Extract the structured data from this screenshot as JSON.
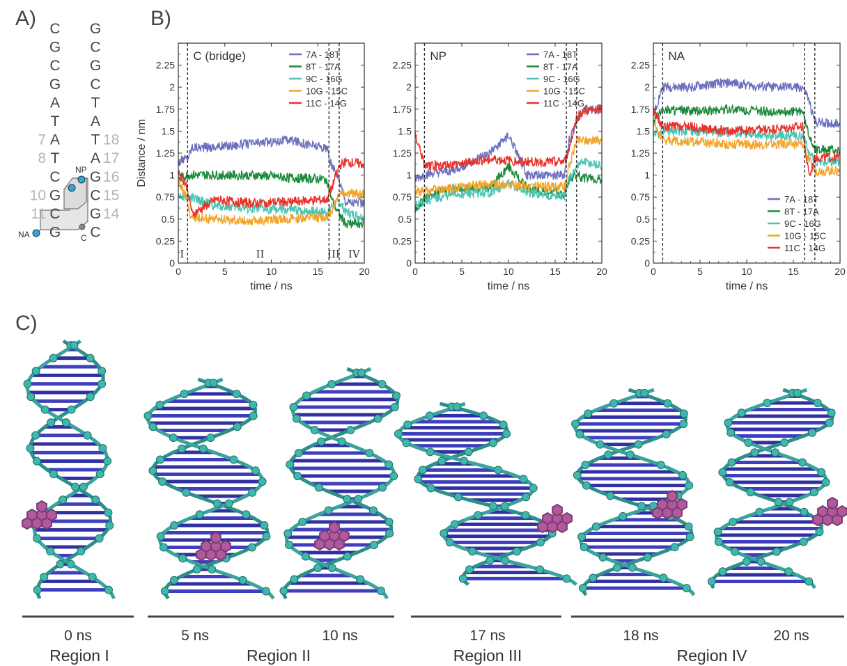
{
  "panel_labels": {
    "a": "A)",
    "b": "B)",
    "c": "C)"
  },
  "sequence": {
    "left": [
      "C",
      "G",
      "C",
      "G",
      "A",
      "T",
      "A",
      "T",
      "C",
      "G",
      "C",
      "G"
    ],
    "right": [
      "G",
      "C",
      "G",
      "C",
      "T",
      "A",
      "T",
      "A",
      "G",
      "C",
      "G",
      "C"
    ],
    "left_numbers": [
      "",
      "",
      "",
      "",
      "",
      "",
      "7",
      "8",
      "",
      "10",
      "11",
      ""
    ],
    "right_numbers": [
      "",
      "",
      "",
      "",
      "",
      "",
      "18",
      "17",
      "16",
      "15",
      "14",
      ""
    ],
    "markers": {
      "np": "NP",
      "na": "NA",
      "c": "C"
    }
  },
  "colors": {
    "7A-18T": "#6b6fbd",
    "8T-17A": "#1c8a3c",
    "9C-16G": "#4cc4b4",
    "10G-15C": "#f4a42a",
    "11C-14G": "#e8332b",
    "marker_dot": "#2aa8e0"
  },
  "chart_data": [
    {
      "type": "line",
      "title": "C (bridge)",
      "xlabel": "time / ns",
      "ylabel": "Distance / nm",
      "xlim": [
        0,
        20
      ],
      "ylim": [
        0,
        2.5
      ],
      "xticks": [
        "0",
        "5",
        "10",
        "15",
        "20"
      ],
      "yticks": [
        "0",
        "0.25",
        "0.5",
        "0.75",
        "1",
        "1.25",
        "1.5",
        "1.75",
        "2",
        "2.25"
      ],
      "vlines": [
        1.0,
        16.2,
        17.3
      ],
      "regions": [
        {
          "label": "I",
          "x": 0.4
        },
        {
          "label": "II",
          "x": 8.8
        },
        {
          "label": "III",
          "x": 16.7
        },
        {
          "label": "IV",
          "x": 18.9
        }
      ],
      "legend_position": "top-right",
      "series": [
        {
          "name": "7A  - 18T",
          "key": "7A-18T",
          "points": [
            [
              0,
              1.15
            ],
            [
              1,
              1.2
            ],
            [
              1.5,
              1.32
            ],
            [
              4,
              1.32
            ],
            [
              8,
              1.36
            ],
            [
              12,
              1.4
            ],
            [
              16,
              1.3
            ],
            [
              16.3,
              1.15
            ],
            [
              17.3,
              0.95
            ],
            [
              18,
              0.7
            ],
            [
              20,
              0.68
            ]
          ]
        },
        {
          "name": "8T - 17A",
          "key": "8T-17A",
          "points": [
            [
              0,
              0.95
            ],
            [
              1,
              1.0
            ],
            [
              4,
              1.0
            ],
            [
              8,
              1.0
            ],
            [
              12,
              0.97
            ],
            [
              16,
              0.95
            ],
            [
              16.5,
              0.72
            ],
            [
              17.3,
              0.55
            ],
            [
              18,
              0.45
            ],
            [
              20,
              0.45
            ]
          ]
        },
        {
          "name": "9C - 16G",
          "key": "9C-16G",
          "points": [
            [
              0,
              0.78
            ],
            [
              1,
              0.75
            ],
            [
              4,
              0.65
            ],
            [
              8,
              0.62
            ],
            [
              12,
              0.6
            ],
            [
              16,
              0.58
            ],
            [
              16.5,
              0.65
            ],
            [
              17.3,
              0.7
            ],
            [
              18,
              0.58
            ],
            [
              20,
              0.52
            ]
          ]
        },
        {
          "name": "10G - 15C",
          "key": "10G-15C",
          "points": [
            [
              0,
              0.95
            ],
            [
              1,
              0.7
            ],
            [
              1.3,
              0.52
            ],
            [
              4,
              0.5
            ],
            [
              8,
              0.48
            ],
            [
              12,
              0.5
            ],
            [
              16,
              0.52
            ],
            [
              16.5,
              0.6
            ],
            [
              17.3,
              0.8
            ],
            [
              18,
              0.8
            ],
            [
              20,
              0.78
            ]
          ]
        },
        {
          "name": "11C - 14G",
          "key": "11C-14G",
          "points": [
            [
              0,
              1.05
            ],
            [
              1,
              0.85
            ],
            [
              1.5,
              0.55
            ],
            [
              4,
              0.72
            ],
            [
              8,
              0.68
            ],
            [
              12,
              0.7
            ],
            [
              16,
              0.72
            ],
            [
              16.5,
              0.85
            ],
            [
              17.3,
              1.1
            ],
            [
              18,
              1.15
            ],
            [
              20,
              1.12
            ]
          ]
        }
      ]
    },
    {
      "type": "line",
      "title": "NP",
      "xlabel": "time / ns",
      "ylabel": "",
      "xlim": [
        0,
        20
      ],
      "ylim": [
        0,
        2.5
      ],
      "xticks": [
        "0",
        "5",
        "10",
        "15",
        "20"
      ],
      "yticks": [
        "0",
        "0.25",
        "0.5",
        "0.75",
        "1",
        "1.25",
        "1.5",
        "1.75",
        "2",
        "2.25"
      ],
      "vlines": [
        1.0,
        16.2,
        17.3
      ],
      "regions": [],
      "legend_position": "top-right",
      "series": [
        {
          "name": "7A  - 18T",
          "key": "7A-18T",
          "points": [
            [
              0,
              0.95
            ],
            [
              1,
              1.0
            ],
            [
              4,
              1.05
            ],
            [
              8,
              1.25
            ],
            [
              10,
              1.45
            ],
            [
              12,
              1.0
            ],
            [
              16,
              1.0
            ],
            [
              16.5,
              1.4
            ],
            [
              17.3,
              1.6
            ],
            [
              18,
              1.75
            ],
            [
              20,
              1.75
            ]
          ]
        },
        {
          "name": "8T - 17A",
          "key": "8T-17A",
          "points": [
            [
              0,
              0.6
            ],
            [
              1,
              0.75
            ],
            [
              4,
              0.85
            ],
            [
              8,
              0.85
            ],
            [
              10,
              1.1
            ],
            [
              12,
              0.85
            ],
            [
              16,
              0.78
            ],
            [
              16.5,
              0.95
            ],
            [
              17.3,
              1.0
            ],
            [
              18,
              0.97
            ],
            [
              20,
              0.95
            ]
          ]
        },
        {
          "name": "9C - 16G",
          "key": "9C-16G",
          "points": [
            [
              0,
              0.65
            ],
            [
              1,
              0.7
            ],
            [
              4,
              0.78
            ],
            [
              8,
              0.8
            ],
            [
              10,
              0.9
            ],
            [
              12,
              0.8
            ],
            [
              16,
              0.75
            ],
            [
              16.5,
              0.95
            ],
            [
              17.3,
              1.1
            ],
            [
              18,
              1.15
            ],
            [
              20,
              1.1
            ]
          ]
        },
        {
          "name": "10G - 15C",
          "key": "10G-15C",
          "points": [
            [
              0,
              0.8
            ],
            [
              1,
              0.82
            ],
            [
              4,
              0.85
            ],
            [
              8,
              0.9
            ],
            [
              12,
              0.88
            ],
            [
              16,
              0.87
            ],
            [
              16.5,
              1.1
            ],
            [
              17.3,
              1.4
            ],
            [
              18,
              1.4
            ],
            [
              20,
              1.4
            ]
          ]
        },
        {
          "name": "11C - 14G",
          "key": "11C-14G",
          "points": [
            [
              0,
              1.45
            ],
            [
              0.5,
              1.3
            ],
            [
              1,
              1.1
            ],
            [
              4,
              1.12
            ],
            [
              8,
              1.18
            ],
            [
              12,
              1.15
            ],
            [
              16,
              1.15
            ],
            [
              16.5,
              1.3
            ],
            [
              17.3,
              1.65
            ],
            [
              18,
              1.72
            ],
            [
              20,
              1.75
            ]
          ]
        }
      ]
    },
    {
      "type": "line",
      "title": "NA",
      "xlabel": "time / ns",
      "ylabel": "",
      "xlim": [
        0,
        20
      ],
      "ylim": [
        0,
        2.5
      ],
      "xticks": [
        "0",
        "5",
        "10",
        "15",
        "20"
      ],
      "yticks": [
        "0",
        "0.25",
        "0.5",
        "0.75",
        "1",
        "1.25",
        "1.5",
        "1.75",
        "2",
        "2.25"
      ],
      "vlines": [
        1.0,
        16.2,
        17.3
      ],
      "regions": [],
      "legend_position": "bottom-right",
      "series": [
        {
          "name": "7A  - 18T",
          "key": "7A-18T",
          "points": [
            [
              0,
              1.7
            ],
            [
              1,
              2.0
            ],
            [
              4,
              2.0
            ],
            [
              8,
              2.05
            ],
            [
              12,
              2.0
            ],
            [
              16,
              2.0
            ],
            [
              16.5,
              1.9
            ],
            [
              17.3,
              1.6
            ],
            [
              20,
              1.58
            ]
          ]
        },
        {
          "name": "8T - 17A",
          "key": "8T-17A",
          "points": [
            [
              0,
              1.6
            ],
            [
              1,
              1.75
            ],
            [
              4,
              1.72
            ],
            [
              8,
              1.75
            ],
            [
              12,
              1.72
            ],
            [
              16,
              1.72
            ],
            [
              16.5,
              1.5
            ],
            [
              17.3,
              1.3
            ],
            [
              20,
              1.27
            ]
          ]
        },
        {
          "name": "9C - 16G",
          "key": "9C-16G",
          "points": [
            [
              0,
              1.45
            ],
            [
              1,
              1.5
            ],
            [
              4,
              1.5
            ],
            [
              8,
              1.48
            ],
            [
              12,
              1.45
            ],
            [
              16,
              1.45
            ],
            [
              16.5,
              1.3
            ],
            [
              17.3,
              1.15
            ],
            [
              20,
              1.15
            ]
          ]
        },
        {
          "name": "10G - 15C",
          "key": "10G-15C",
          "points": [
            [
              0,
              1.6
            ],
            [
              1,
              1.4
            ],
            [
              4,
              1.38
            ],
            [
              8,
              1.35
            ],
            [
              12,
              1.35
            ],
            [
              16,
              1.35
            ],
            [
              16.5,
              1.2
            ],
            [
              17.3,
              1.05
            ],
            [
              20,
              1.05
            ]
          ]
        },
        {
          "name": "11C - 14G",
          "key": "11C-14G",
          "points": [
            [
              0,
              1.75
            ],
            [
              1,
              1.55
            ],
            [
              4,
              1.55
            ],
            [
              8,
              1.5
            ],
            [
              12,
              1.52
            ],
            [
              16,
              1.55
            ],
            [
              16.5,
              1.1
            ],
            [
              16.8,
              1.0
            ],
            [
              17.3,
              1.2
            ],
            [
              20,
              1.2
            ]
          ]
        }
      ]
    }
  ],
  "snapshots": {
    "times": [
      "0 ns",
      "5 ns",
      "10 ns",
      "17 ns",
      "18 ns",
      "20 ns"
    ],
    "regions": [
      "Region I",
      "Region II",
      "Region III",
      "Region IV"
    ]
  }
}
